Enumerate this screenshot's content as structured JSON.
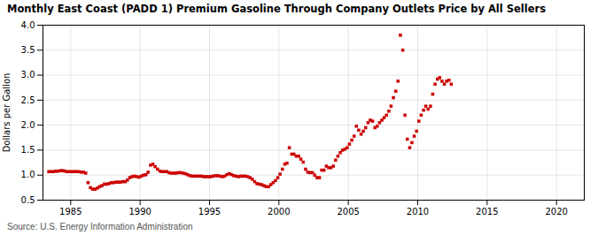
{
  "chart_data": {
    "type": "scatter",
    "title": "Monthly East Coast (PADD 1) Premium Gasoline Through Company Outlets Price by All Sellers",
    "ylabel": "Dollars per Gallon",
    "source": "Source: U.S. Energy Information Administration",
    "xlim": [
      1983,
      2022
    ],
    "ylim": [
      0.5,
      4.0
    ],
    "xticks": [
      1985,
      1990,
      1995,
      2000,
      2005,
      2010,
      2015,
      2020
    ],
    "yticks": [
      0.5,
      {
        "value": 1.0,
        "label": "1.0"
      },
      1.5,
      {
        "value": 2.0,
        "label": "2.0"
      },
      2.5,
      {
        "value": 3.0,
        "label": "3.0"
      },
      3.5,
      {
        "value": 4.0,
        "label": "4.0"
      }
    ],
    "color": "#cc0000",
    "marker": "square",
    "grid": true,
    "x": [
      1983.42,
      1983.58,
      1983.75,
      1983.92,
      1984.08,
      1984.25,
      1984.42,
      1984.58,
      1984.75,
      1984.92,
      1985.08,
      1985.25,
      1985.42,
      1985.58,
      1985.75,
      1985.92,
      1986.08,
      1986.25,
      1986.42,
      1986.58,
      1986.75,
      1986.92,
      1987.08,
      1987.25,
      1987.42,
      1987.58,
      1987.75,
      1987.92,
      1988.08,
      1988.25,
      1988.42,
      1988.58,
      1988.75,
      1988.92,
      1989.08,
      1989.25,
      1989.42,
      1989.58,
      1989.75,
      1989.92,
      1990.08,
      1990.25,
      1990.42,
      1990.58,
      1990.75,
      1990.92,
      1991.08,
      1991.25,
      1991.42,
      1991.58,
      1991.75,
      1991.92,
      1992.08,
      1992.25,
      1992.42,
      1992.58,
      1992.75,
      1992.92,
      1993.08,
      1993.25,
      1993.42,
      1993.58,
      1993.75,
      1993.92,
      1994.08,
      1994.25,
      1994.42,
      1994.58,
      1994.75,
      1994.92,
      1995.08,
      1995.25,
      1995.42,
      1995.58,
      1995.75,
      1995.92,
      1996.08,
      1996.25,
      1996.42,
      1996.58,
      1996.75,
      1996.92,
      1997.08,
      1997.25,
      1997.42,
      1997.58,
      1997.75,
      1997.92,
      1998.08,
      1998.25,
      1998.42,
      1998.58,
      1998.75,
      1998.92,
      1999.08,
      1999.25,
      1999.42,
      1999.58,
      1999.75,
      1999.92,
      2000.08,
      2000.25,
      2000.42,
      2000.58,
      2000.75,
      2000.92,
      2001.08,
      2001.25,
      2001.42,
      2001.58,
      2001.75,
      2001.92,
      2002.08,
      2002.25,
      2002.42,
      2002.58,
      2002.75,
      2002.92,
      2003.08,
      2003.25,
      2003.42,
      2003.58,
      2003.75,
      2003.92,
      2004.08,
      2004.25,
      2004.42,
      2004.58,
      2004.75,
      2004.92,
      2005.08,
      2005.25,
      2005.42,
      2005.58,
      2005.75,
      2005.92,
      2006.08,
      2006.25,
      2006.42,
      2006.58,
      2006.75,
      2006.92,
      2007.08,
      2007.25,
      2007.42,
      2007.58,
      2007.75,
      2007.92,
      2008.08,
      2008.25,
      2008.42,
      2008.58,
      2008.75,
      2008.92,
      2009.08,
      2009.25,
      2009.42,
      2009.58,
      2009.75,
      2009.92,
      2010.08,
      2010.25,
      2010.42,
      2010.58,
      2010.75,
      2010.92,
      2011.08,
      2011.25,
      2011.42,
      2011.58,
      2011.75,
      2011.92,
      2012.08,
      2012.25,
      2012.42
    ],
    "values": [
      1.07,
      1.07,
      1.07,
      1.08,
      1.08,
      1.09,
      1.09,
      1.08,
      1.07,
      1.07,
      1.07,
      1.07,
      1.07,
      1.07,
      1.06,
      1.06,
      1.04,
      0.85,
      0.75,
      0.72,
      0.72,
      0.74,
      0.77,
      0.79,
      0.82,
      0.82,
      0.83,
      0.85,
      0.85,
      0.86,
      0.86,
      0.86,
      0.87,
      0.87,
      0.9,
      0.95,
      0.97,
      0.98,
      0.97,
      0.96,
      0.98,
      1.0,
      1.01,
      1.06,
      1.2,
      1.22,
      1.17,
      1.12,
      1.08,
      1.07,
      1.07,
      1.07,
      1.05,
      1.04,
      1.04,
      1.04,
      1.05,
      1.05,
      1.04,
      1.03,
      1.01,
      0.99,
      0.98,
      0.98,
      0.98,
      0.98,
      0.98,
      0.97,
      0.97,
      0.97,
      0.97,
      0.98,
      0.99,
      0.99,
      0.98,
      0.97,
      0.98,
      1.01,
      1.03,
      1.01,
      0.99,
      0.98,
      0.97,
      0.98,
      0.98,
      0.98,
      0.97,
      0.95,
      0.92,
      0.87,
      0.83,
      0.82,
      0.81,
      0.79,
      0.77,
      0.77,
      0.81,
      0.85,
      0.89,
      0.95,
      1.02,
      1.12,
      1.22,
      1.24,
      1.55,
      1.42,
      1.42,
      1.38,
      1.38,
      1.32,
      1.26,
      1.12,
      1.06,
      1.05,
      1.05,
      1.0,
      0.95,
      0.95,
      1.1,
      1.1,
      1.18,
      1.15,
      1.15,
      1.18,
      1.3,
      1.38,
      1.45,
      1.5,
      1.52,
      1.55,
      1.62,
      1.7,
      1.78,
      1.98,
      1.9,
      1.82,
      1.88,
      1.95,
      2.05,
      2.1,
      2.08,
      1.95,
      1.98,
      2.05,
      2.1,
      2.15,
      2.2,
      2.28,
      2.38,
      2.55,
      2.68,
      2.88,
      3.8,
      3.5,
      2.2,
      1.72,
      1.55,
      1.65,
      1.78,
      1.88,
      2.08,
      2.2,
      2.3,
      2.38,
      2.32,
      2.38,
      2.62,
      2.82,
      2.92,
      2.95,
      2.88,
      2.82,
      2.88,
      2.9,
      2.82
    ]
  }
}
